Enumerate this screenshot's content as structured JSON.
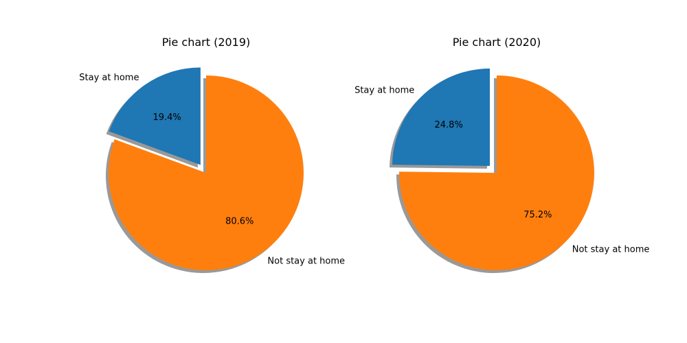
{
  "chart_data": [
    {
      "type": "pie",
      "title": "Pie chart (2019)",
      "labels": [
        "Stay at home",
        "Not stay at home"
      ],
      "values": [
        19.4,
        80.6
      ],
      "value_labels": [
        "19.4%",
        "80.6%"
      ],
      "colors": [
        "#1f77b4",
        "#ff7f0e"
      ],
      "explode": [
        0.1,
        0
      ],
      "start_angle_deg": 90,
      "direction": "counterclockwise",
      "shadow": true
    },
    {
      "type": "pie",
      "title": "Pie chart (2020)",
      "labels": [
        "Stay at home",
        "Not stay at home"
      ],
      "values": [
        24.8,
        75.2
      ],
      "value_labels": [
        "24.8%",
        "75.2%"
      ],
      "colors": [
        "#1f77b4",
        "#ff7f0e"
      ],
      "explode": [
        0.1,
        0
      ],
      "start_angle_deg": 90,
      "direction": "counterclockwise",
      "shadow": true
    }
  ]
}
